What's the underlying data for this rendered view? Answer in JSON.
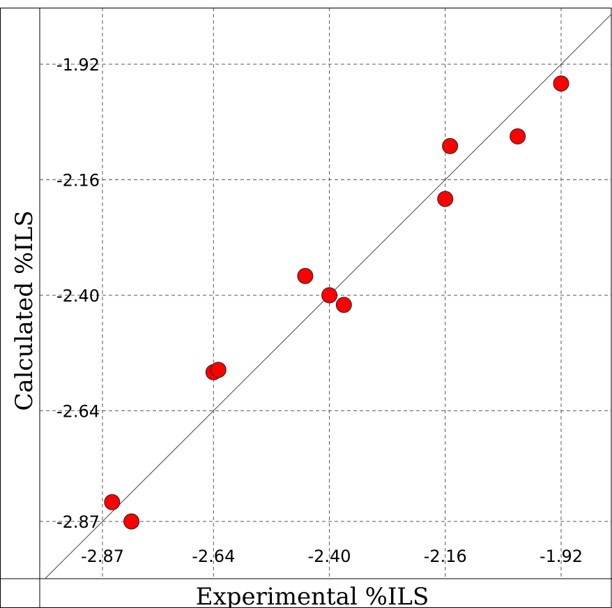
{
  "chart_data": {
    "type": "scatter",
    "xlabel": "Experimental %ILS",
    "ylabel": "Calculated %ILS",
    "x_ticks": [
      "-2.87",
      "-2.64",
      "-2.40",
      "-2.16",
      "-1.92"
    ],
    "y_ticks": [
      "-1.92",
      "-2.16",
      "-2.40",
      "-2.64",
      "-2.87"
    ],
    "x_tick_values": [
      -2.87,
      -2.64,
      -2.4,
      -2.16,
      -1.92
    ],
    "y_tick_values": [
      -1.92,
      -2.16,
      -2.4,
      -2.64,
      -2.87
    ],
    "xlim": [
      -3.0,
      -1.8
    ],
    "ylim": [
      -3.0,
      -1.8
    ],
    "grid": true,
    "reference_line": "y = x",
    "points": [
      {
        "x": -2.85,
        "y": -2.83
      },
      {
        "x": -2.81,
        "y": -2.87
      },
      {
        "x": -2.64,
        "y": -2.56
      },
      {
        "x": -2.63,
        "y": -2.555
      },
      {
        "x": -2.45,
        "y": -2.36
      },
      {
        "x": -2.4,
        "y": -2.4
      },
      {
        "x": -2.37,
        "y": -2.42
      },
      {
        "x": -2.16,
        "y": -2.2
      },
      {
        "x": -2.15,
        "y": -2.09
      },
      {
        "x": -2.01,
        "y": -2.07
      },
      {
        "x": -1.92,
        "y": -1.96
      }
    ],
    "point_color": "#ff0000"
  }
}
